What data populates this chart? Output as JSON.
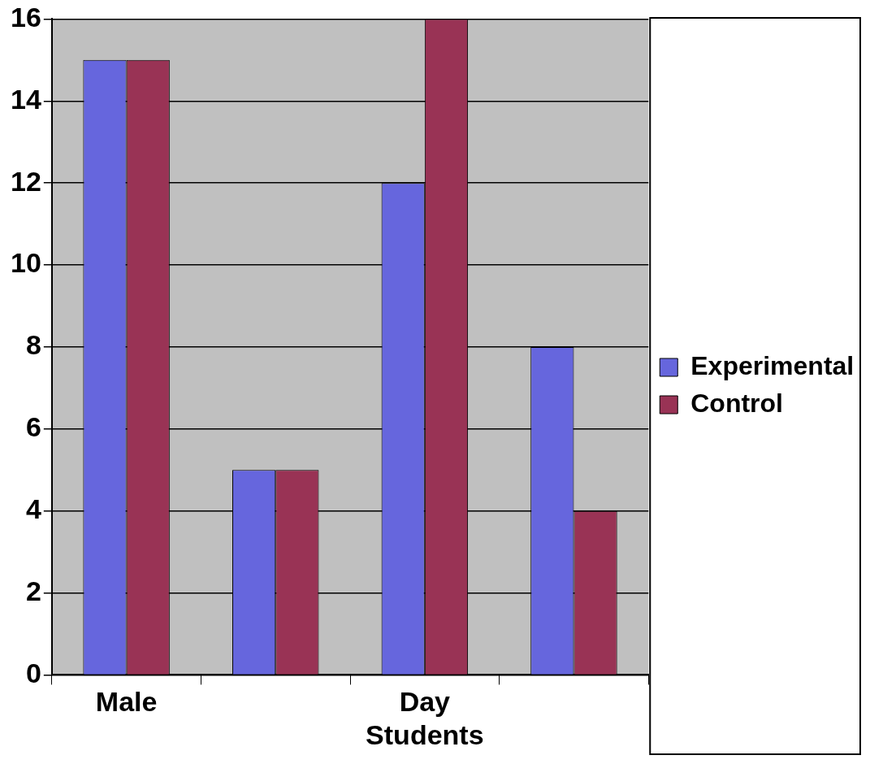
{
  "chart_data": {
    "type": "bar",
    "categories": [
      "Male",
      null,
      "Day Students",
      null
    ],
    "series": [
      {
        "name": "Experimental",
        "color": "#6666dd",
        "values": [
          15,
          5,
          12,
          8
        ]
      },
      {
        "name": "Control",
        "color": "#993355",
        "values": [
          15,
          5,
          16,
          4
        ]
      }
    ],
    "ylim": [
      0,
      16
    ],
    "yticks": [
      0,
      2,
      4,
      6,
      8,
      10,
      12,
      14,
      16
    ],
    "grid": "y",
    "legend": "right"
  }
}
